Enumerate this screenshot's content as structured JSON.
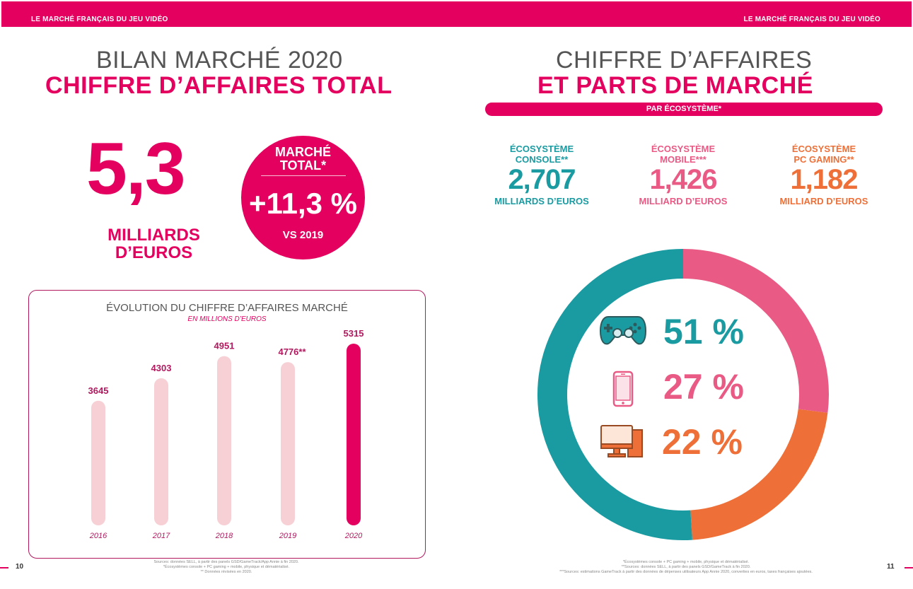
{
  "header": {
    "left": "LE MARCHÉ FRANÇAIS DU JEU VIDÉO",
    "right": "LE MARCHÉ FRANÇAIS DU JEU VIDÉO"
  },
  "left_page": {
    "title_line1": "BILAN MARCHÉ 2020",
    "title_line2": "CHIFFRE D’AFFAIRES TOTAL",
    "big_value": "5,3",
    "big_unit": "MILLIARDS D’EUROS",
    "circle_label": "MARCHÉ TOTAL*",
    "circle_value": "+11,3 %",
    "circle_sub": "VS 2019",
    "page_number": "10",
    "footnotes": [
      "Sources: données SELL, à partir des panels GSD/GameTrack/App Annie à fin 2020.",
      "*Écosystèmes console + PC gaming + mobile, physique et dématérialisé.",
      "** Données révisées en 2020."
    ]
  },
  "right_page": {
    "title_line1": "CHIFFRE D’AFFAIRES",
    "title_line2": "ET PARTS DE MARCHÉ",
    "pill_label": "PAR ÉCOSYSTÈME*",
    "ecosystems": [
      {
        "name1": "ÉCOSYSTÈME",
        "name2": "CONSOLE**",
        "value": "2,707",
        "unit": "MILLIARDS D’EUROS",
        "color": "#1a9ba1",
        "share": "51 %",
        "icon": "gamepad-icon"
      },
      {
        "name1": "ÉCOSYSTÈME",
        "name2": "MOBILE***",
        "value": "1,426",
        "unit": "MILLIARD D’EUROS",
        "color": "#e95a85",
        "share": "27 %",
        "icon": "smartphone-icon"
      },
      {
        "name1": "ÉCOSYSTÈME",
        "name2": "PC GAMING**",
        "value": "1,182",
        "unit": "MILLIARD D’EUROS",
        "color": "#ee7038",
        "share": "22 %",
        "icon": "desktop-computer-icon"
      }
    ],
    "page_number": "11",
    "footnotes": [
      "*Écosystèmes console + PC gaming + mobile, physique et dématérialisé.",
      "**Sources: données SELL, à partir des panels GSD/GameTrack à fin 2020.",
      "***Sources: estimations GameTrack à partir des données de dépenses utilisateurs App Annie 2020, converties en euros, taxes françaises ajoutées."
    ]
  },
  "chart_data": [
    {
      "type": "bar",
      "title": "ÉVOLUTION DU CHIFFRE D’AFFAIRES MARCHÉ",
      "subtitle": "EN MILLIONS D’EUROS",
      "categories": [
        "2016",
        "2017",
        "2018",
        "2019",
        "2020"
      ],
      "values": [
        3645,
        4303,
        4951,
        4776,
        5315
      ],
      "value_labels": [
        "3645",
        "4303",
        "4951",
        "4776**",
        "5315"
      ],
      "bar_colors": [
        "#f7d0d5",
        "#f7d0d5",
        "#f7d0d5",
        "#f7d0d5",
        "#e3005e"
      ],
      "ylim": [
        0,
        5315
      ]
    },
    {
      "type": "pie",
      "categories": [
        "Console",
        "Mobile",
        "PC Gaming"
      ],
      "values": [
        51,
        27,
        22
      ],
      "colors": [
        "#1a9ba1",
        "#e95a85",
        "#ee7038"
      ]
    }
  ]
}
